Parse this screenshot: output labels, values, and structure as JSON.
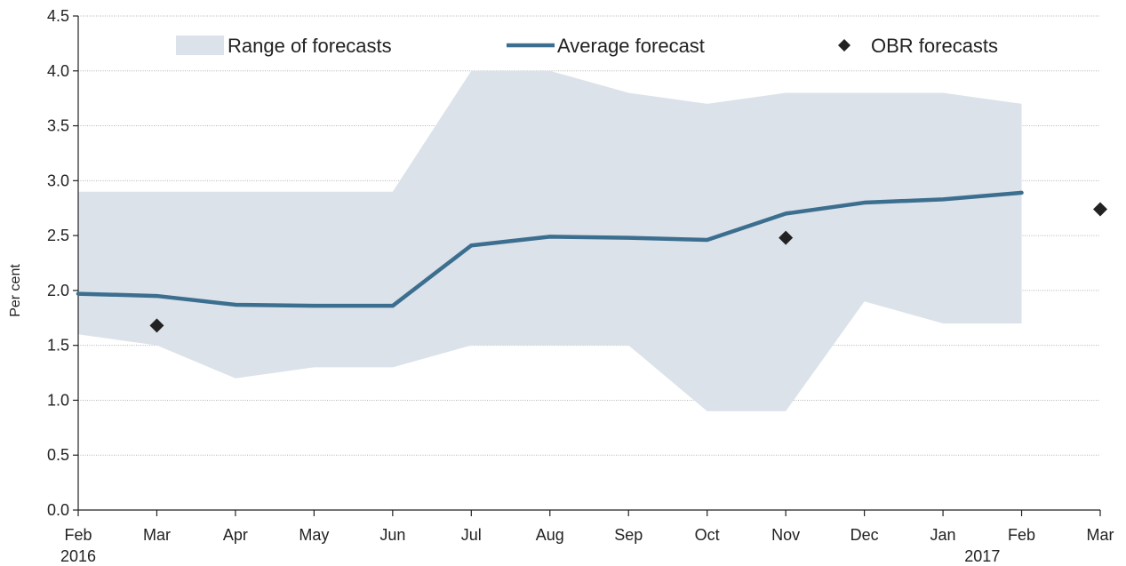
{
  "chart_data": {
    "type": "line",
    "ylabel": "Per cent",
    "ylim": [
      0,
      4.5
    ],
    "yticks": [
      "0.0",
      "0.5",
      "1.0",
      "1.5",
      "2.0",
      "2.5",
      "3.0",
      "3.5",
      "4.0",
      "4.5"
    ],
    "categories": [
      "Feb",
      "Mar",
      "Apr",
      "May",
      "Jun",
      "Jul",
      "Aug",
      "Sep",
      "Oct",
      "Nov",
      "Dec",
      "Jan",
      "Feb",
      "Mar"
    ],
    "year_labels": [
      {
        "index": 0,
        "text": "2016"
      },
      {
        "index": 11.5,
        "text": "2017"
      }
    ],
    "grid": true,
    "legend_position": "top",
    "series": [
      {
        "name": "Range of forecasts",
        "kind": "range",
        "color": "#dbe2ea",
        "low": [
          1.6,
          1.5,
          1.2,
          1.3,
          1.3,
          1.5,
          1.5,
          1.5,
          0.9,
          0.9,
          1.9,
          1.7,
          1.7,
          null
        ],
        "high": [
          2.9,
          2.9,
          2.9,
          2.9,
          2.9,
          4.0,
          4.0,
          3.8,
          3.7,
          3.8,
          3.8,
          3.8,
          3.7,
          null
        ]
      },
      {
        "name": "Average forecast",
        "kind": "line",
        "color": "#3c6e8f",
        "values": [
          1.97,
          1.95,
          1.87,
          1.86,
          1.86,
          2.41,
          2.49,
          2.48,
          2.46,
          2.7,
          2.8,
          2.83,
          2.89,
          null
        ]
      },
      {
        "name": "OBR forecasts",
        "kind": "points",
        "color": "#222222",
        "points": [
          {
            "index": 1,
            "value": 1.68
          },
          {
            "index": 9,
            "value": 2.48
          },
          {
            "index": 13,
            "value": 2.74
          }
        ]
      }
    ]
  }
}
